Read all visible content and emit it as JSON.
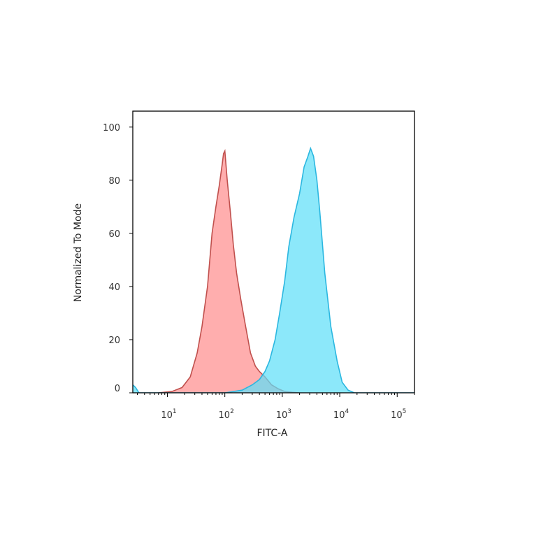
{
  "chart_data": {
    "type": "area",
    "xlabel": "FITC-A",
    "ylabel": "Normalized To Mode",
    "x_scale": "log",
    "xlim": [
      2.5,
      200000
    ],
    "ylim": [
      0,
      106
    ],
    "y_ticks": [
      0,
      20,
      40,
      60,
      80,
      100
    ],
    "x_ticks": [
      {
        "value": 10,
        "base": "10",
        "exp": "1"
      },
      {
        "value": 100,
        "base": "10",
        "exp": "2"
      },
      {
        "value": 1000,
        "base": "10",
        "exp": "3"
      },
      {
        "value": 10000,
        "base": "10",
        "exp": "4"
      },
      {
        "value": 100000,
        "base": "10",
        "exp": "5"
      }
    ],
    "grid": false,
    "legend": "none",
    "series": [
      {
        "color": "#ff8f8f",
        "stroke": "#c0504d",
        "x": [
          7,
          12,
          18,
          25,
          33,
          40,
          50,
          60,
          70,
          80,
          90,
          95,
          100,
          110,
          125,
          140,
          160,
          190,
          230,
          280,
          340,
          400,
          500,
          650,
          850,
          1100,
          1500,
          2000
        ],
        "y": [
          0,
          0.5,
          2,
          6,
          15,
          25,
          40,
          60,
          70,
          78,
          86,
          90,
          91,
          80,
          68,
          56,
          45,
          35,
          25,
          15,
          10,
          8,
          6,
          3,
          1.5,
          0.5,
          0.2,
          0
        ]
      },
      {
        "color": "#5fdff8",
        "stroke": "#2bb7e0",
        "x": [
          2.5,
          2.8,
          3.2,
          10,
          100,
          200,
          300,
          400,
          500,
          600,
          750,
          900,
          1100,
          1300,
          1600,
          2000,
          2400,
          2800,
          3100,
          3500,
          4000,
          4500,
          5500,
          7000,
          9000,
          11000,
          14000,
          18000,
          30000,
          200000
        ],
        "y": [
          3,
          2,
          0,
          0,
          0,
          1,
          3,
          5,
          8,
          12,
          20,
          30,
          42,
          55,
          66,
          75,
          85,
          89,
          92,
          89,
          80,
          68,
          45,
          25,
          12,
          4,
          1,
          0,
          0,
          0
        ]
      }
    ]
  }
}
